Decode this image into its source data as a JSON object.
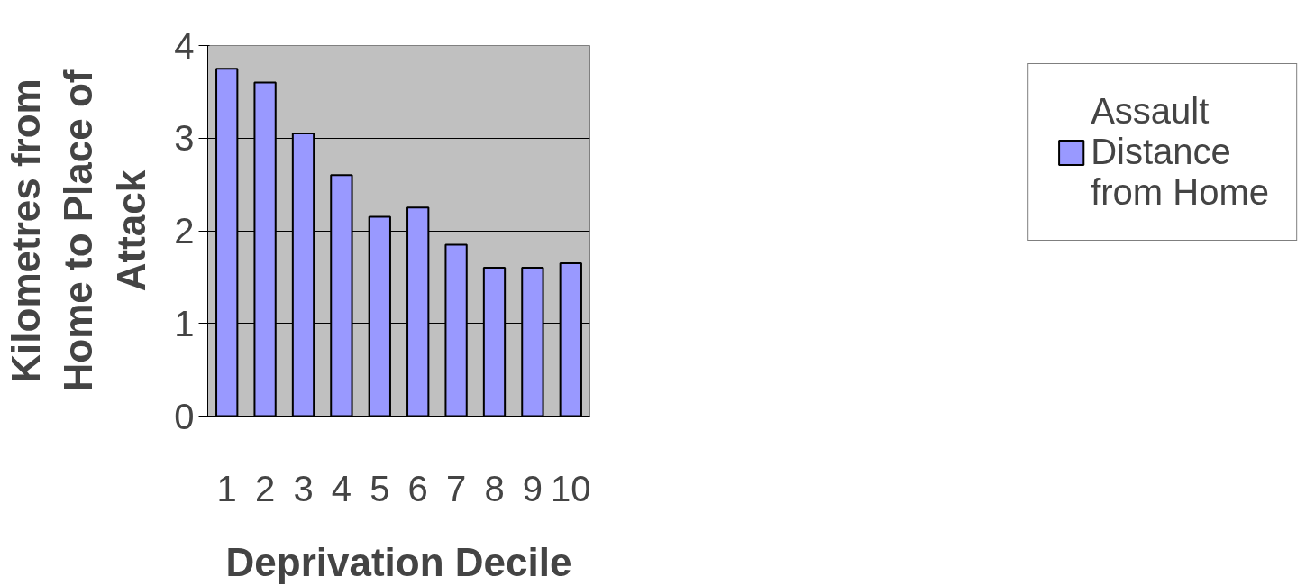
{
  "chart_data": {
    "type": "bar",
    "xlabel": "Deprivation Decile",
    "ylabel": "Kilometres from Home to Place of Attack",
    "categories": [
      "1",
      "2",
      "3",
      "4",
      "5",
      "6",
      "7",
      "8",
      "9",
      "10"
    ],
    "series": [
      {
        "name": "Assault Distance from Home",
        "color": "#9999ff",
        "values": [
          3.75,
          3.6,
          3.05,
          2.6,
          2.15,
          2.25,
          1.85,
          1.6,
          1.6,
          1.65
        ]
      }
    ],
    "ylim": [
      0,
      4
    ],
    "yticks": [
      0,
      1,
      2,
      3,
      4
    ],
    "grid": "y",
    "legend": "right"
  }
}
